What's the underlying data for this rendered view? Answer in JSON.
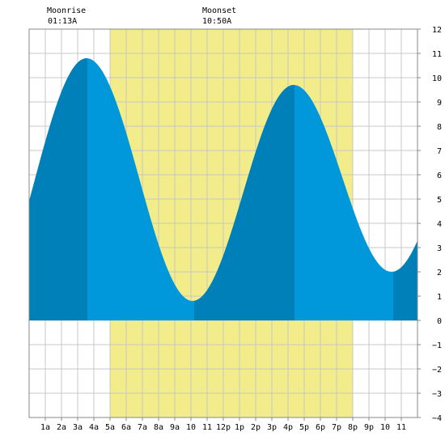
{
  "chart_data": {
    "type": "area",
    "title": "",
    "xlabel": "",
    "ylabel": "",
    "xlim": [
      0,
      24
    ],
    "ylim": [
      -4,
      12
    ],
    "grid": true,
    "x_tick_labels": [
      "1a",
      "2a",
      "3a",
      "4a",
      "5a",
      "6a",
      "7a",
      "8a",
      "9a",
      "10",
      "11",
      "12p",
      "1p",
      "2p",
      "3p",
      "4p",
      "5p",
      "6p",
      "7p",
      "8p",
      "9p",
      "10",
      "11"
    ],
    "y_tick_labels": [
      "12",
      "11",
      "10",
      "9",
      "8",
      "7",
      "6",
      "5",
      "4",
      "3",
      "2",
      "1",
      "0",
      "−1",
      "−2",
      "−3",
      "−4"
    ],
    "extremes": [
      {
        "hour": 3.55,
        "height": 10.8,
        "kind": "high"
      },
      {
        "hour": 10.1,
        "height": 0.8,
        "kind": "low"
      },
      {
        "hour": 16.35,
        "height": 9.7,
        "kind": "high"
      },
      {
        "hour": 22.4,
        "height": 2.0,
        "kind": "low"
      }
    ],
    "start_value": 5.2,
    "end_value": 3.3,
    "daylight": {
      "start_hour": 5.0,
      "end_hour": 20.0
    },
    "moonrise": {
      "label": "Moonrise",
      "time": "01:13A",
      "hour": 1.22
    },
    "moonset": {
      "label": "Moonset",
      "time": "10:50A",
      "hour": 10.83
    },
    "dark_bands": [
      [
        0,
        3.6
      ],
      [
        10.2,
        16.4
      ],
      [
        22.5,
        24
      ]
    ],
    "colors": {
      "tide": "#0098da",
      "tide_dark": "#0080b8",
      "daylight": "#f2ec8a",
      "grid": "#c8c8c8",
      "border": "#888888"
    }
  }
}
